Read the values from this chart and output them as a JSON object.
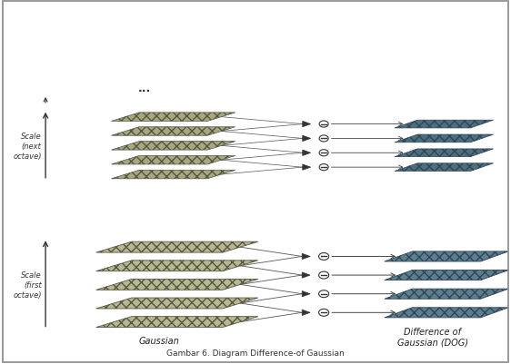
{
  "title": "Gambar 6. Diagram Difference-of Gaussian",
  "background_color": "#ffffff",
  "gaussian_label": "Gaussian",
  "dog_label": "Difference of\nGaussian (DOG)",
  "scale_next_label": "Scale\n(next\noctave)",
  "scale_first_label": "Scale\n(first\noctave)",
  "dots_text": "...",
  "gauss_color1": "#b8b890",
  "gauss_color2": "#a8a880",
  "dog_color1": "#5a8090",
  "dog_color2": "#4a7080",
  "line_color": "#555555",
  "text_color": "#333333",
  "border_color": "#888888"
}
